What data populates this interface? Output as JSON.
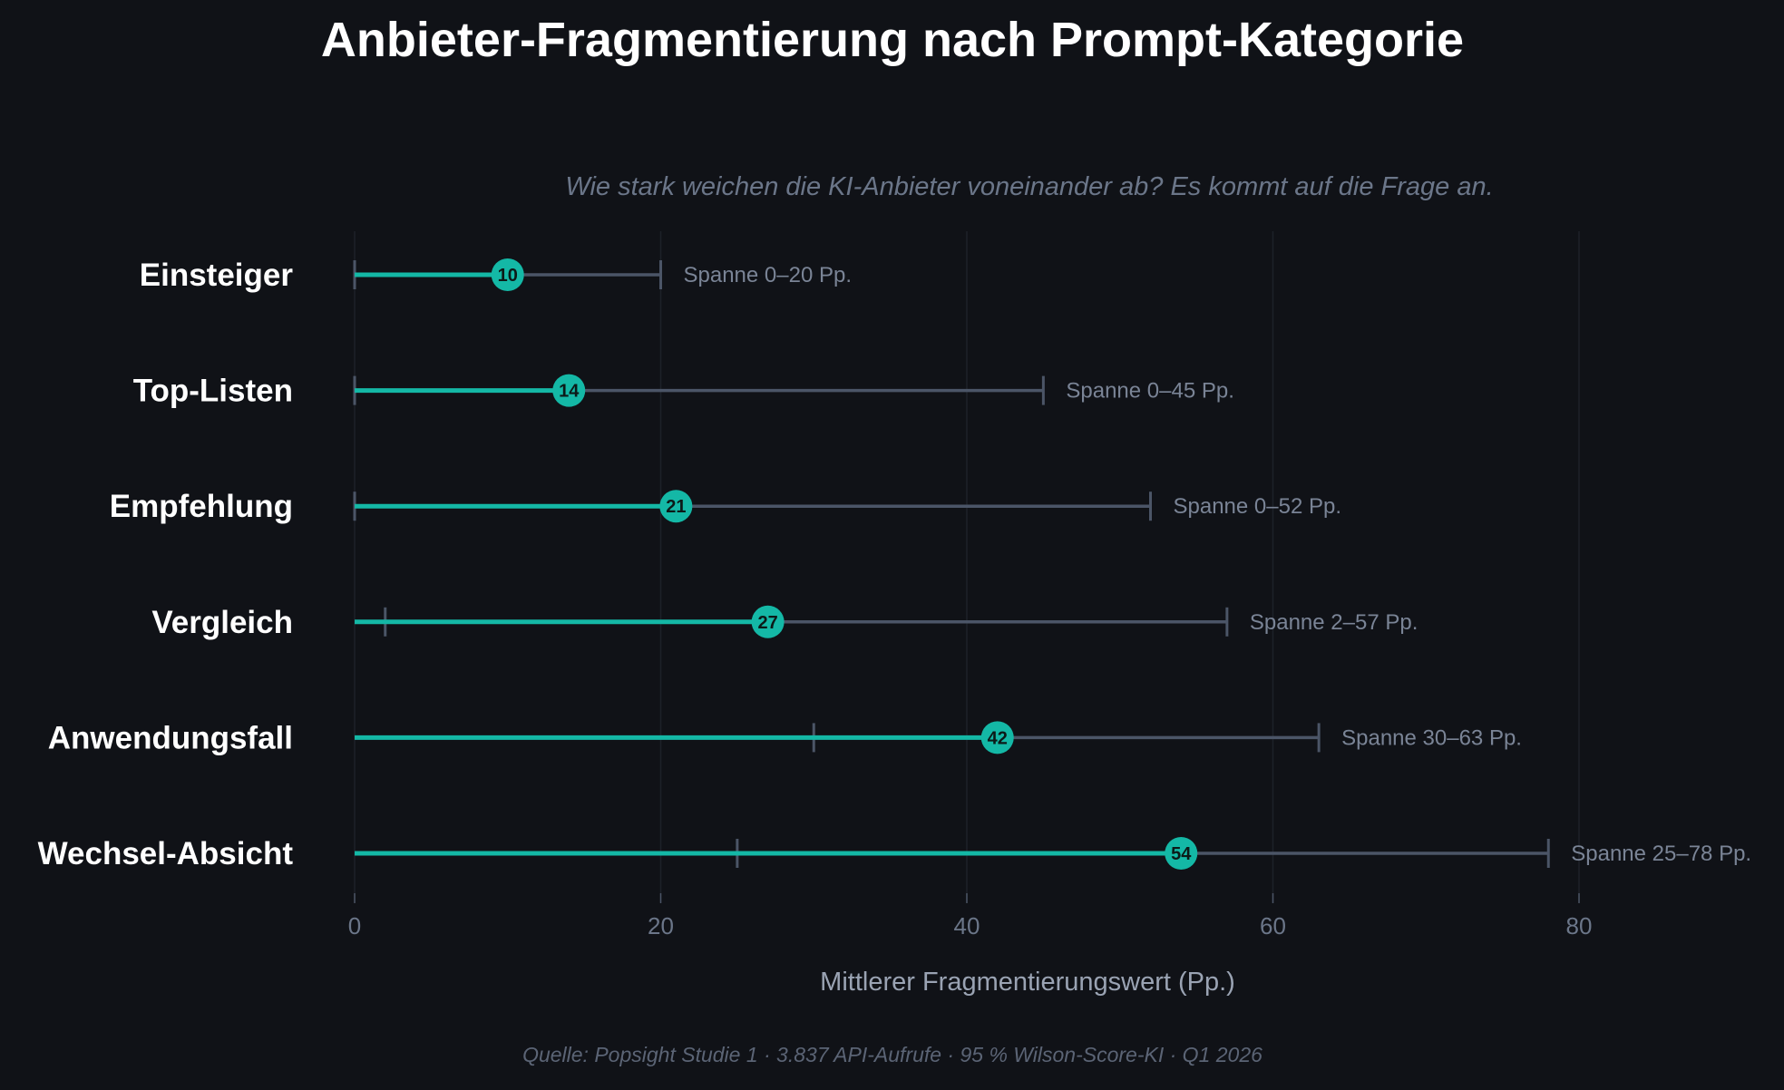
{
  "chart_data": {
    "type": "dot-range",
    "title": "Anbieter-Fragmentierung nach Prompt-Kategorie",
    "subtitle": "Wie stark weichen die KI-Anbieter voneinander ab? Es kommt auf die Frage an.",
    "xlabel": "Mittlerer Fragmentierungswert (Pp.)",
    "xlim": [
      0,
      80
    ],
    "xticks": [
      0,
      20,
      40,
      60,
      80
    ],
    "grid": "vertical",
    "source": "Quelle: Popsight Studie 1  ·  3.837 API-Aufrufe  ·  95 % Wilson-Score-KI  ·  Q1 2026",
    "categories": [
      "Einsteiger",
      "Top-Listen",
      "Empfehlung",
      "Vergleich",
      "Anwendungsfall",
      "Wechsel-Absicht"
    ],
    "values": [
      10,
      14,
      21,
      27,
      42,
      54
    ],
    "range_low": [
      0,
      0,
      0,
      2,
      30,
      25
    ],
    "range_high": [
      20,
      45,
      52,
      57,
      63,
      78
    ],
    "range_labels": [
      "Spanne 0–20 Pp.",
      "Spanne 0–45 Pp.",
      "Spanne 0–52 Pp.",
      "Spanne 2–57 Pp.",
      "Spanne 30–63 Pp.",
      "Spanne 25–78 Pp."
    ],
    "colors": {
      "background": "#101217",
      "accent": "#14b8a6",
      "range": "#4b5567",
      "grid": "#1d2129"
    }
  }
}
